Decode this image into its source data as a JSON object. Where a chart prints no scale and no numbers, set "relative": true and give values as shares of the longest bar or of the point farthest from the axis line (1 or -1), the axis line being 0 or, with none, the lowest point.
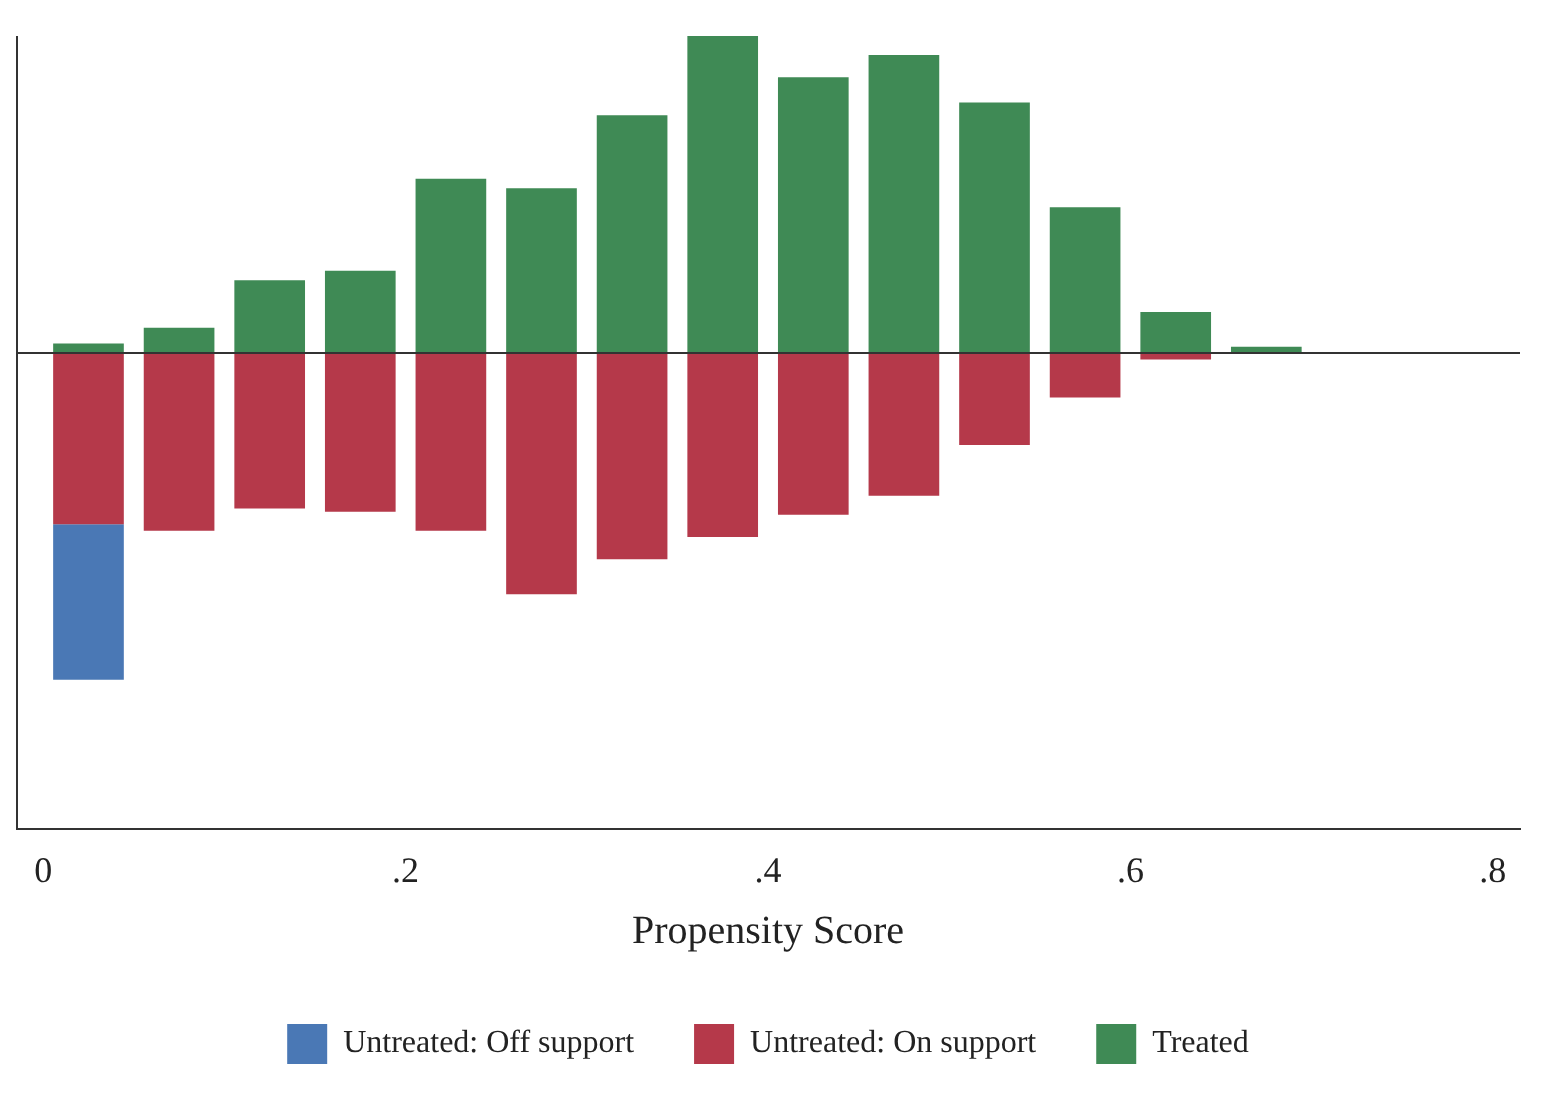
{
  "chart_data": {
    "type": "bar",
    "relative": true,
    "stacked": true,
    "xlabel": "Propensity Score",
    "x": [
      0.025,
      0.075,
      0.125,
      0.175,
      0.225,
      0.275,
      0.325,
      0.375,
      0.425,
      0.475,
      0.525,
      0.575,
      0.625,
      0.675
    ],
    "xlim": [
      -0.015,
      0.815
    ],
    "xticks": [
      {
        "value": 0,
        "label": "0"
      },
      {
        "value": 0.2,
        "label": ".2"
      },
      {
        "value": 0.4,
        "label": ".4"
      },
      {
        "value": 0.6,
        "label": ".6"
      },
      {
        "value": 0.8,
        "label": ".8"
      }
    ],
    "series": [
      {
        "name": "Treated",
        "color": "#3f8a55",
        "values": [
          0.03,
          0.08,
          0.23,
          0.26,
          0.55,
          0.52,
          0.75,
          1,
          0.87,
          0.94,
          0.79,
          0.46,
          0.13,
          0.02
        ]
      },
      {
        "name": "Untreated: On support",
        "color": "#b5394a",
        "values": [
          -0.54,
          -0.56,
          -0.49,
          -0.5,
          -0.56,
          -0.76,
          -0.65,
          -0.58,
          -0.51,
          -0.45,
          -0.29,
          -0.14,
          -0.02,
          null
        ]
      },
      {
        "name": "Untreated: Off support",
        "color": "#4a78b5",
        "values": [
          -0.49,
          null,
          null,
          null,
          null,
          null,
          null,
          null,
          null,
          null,
          null,
          null,
          null,
          null
        ]
      }
    ],
    "ref_lines": [
      {
        "axis": "y",
        "value": 0,
        "color": "#333333"
      }
    ],
    "grid": false,
    "legend": "bottom"
  }
}
